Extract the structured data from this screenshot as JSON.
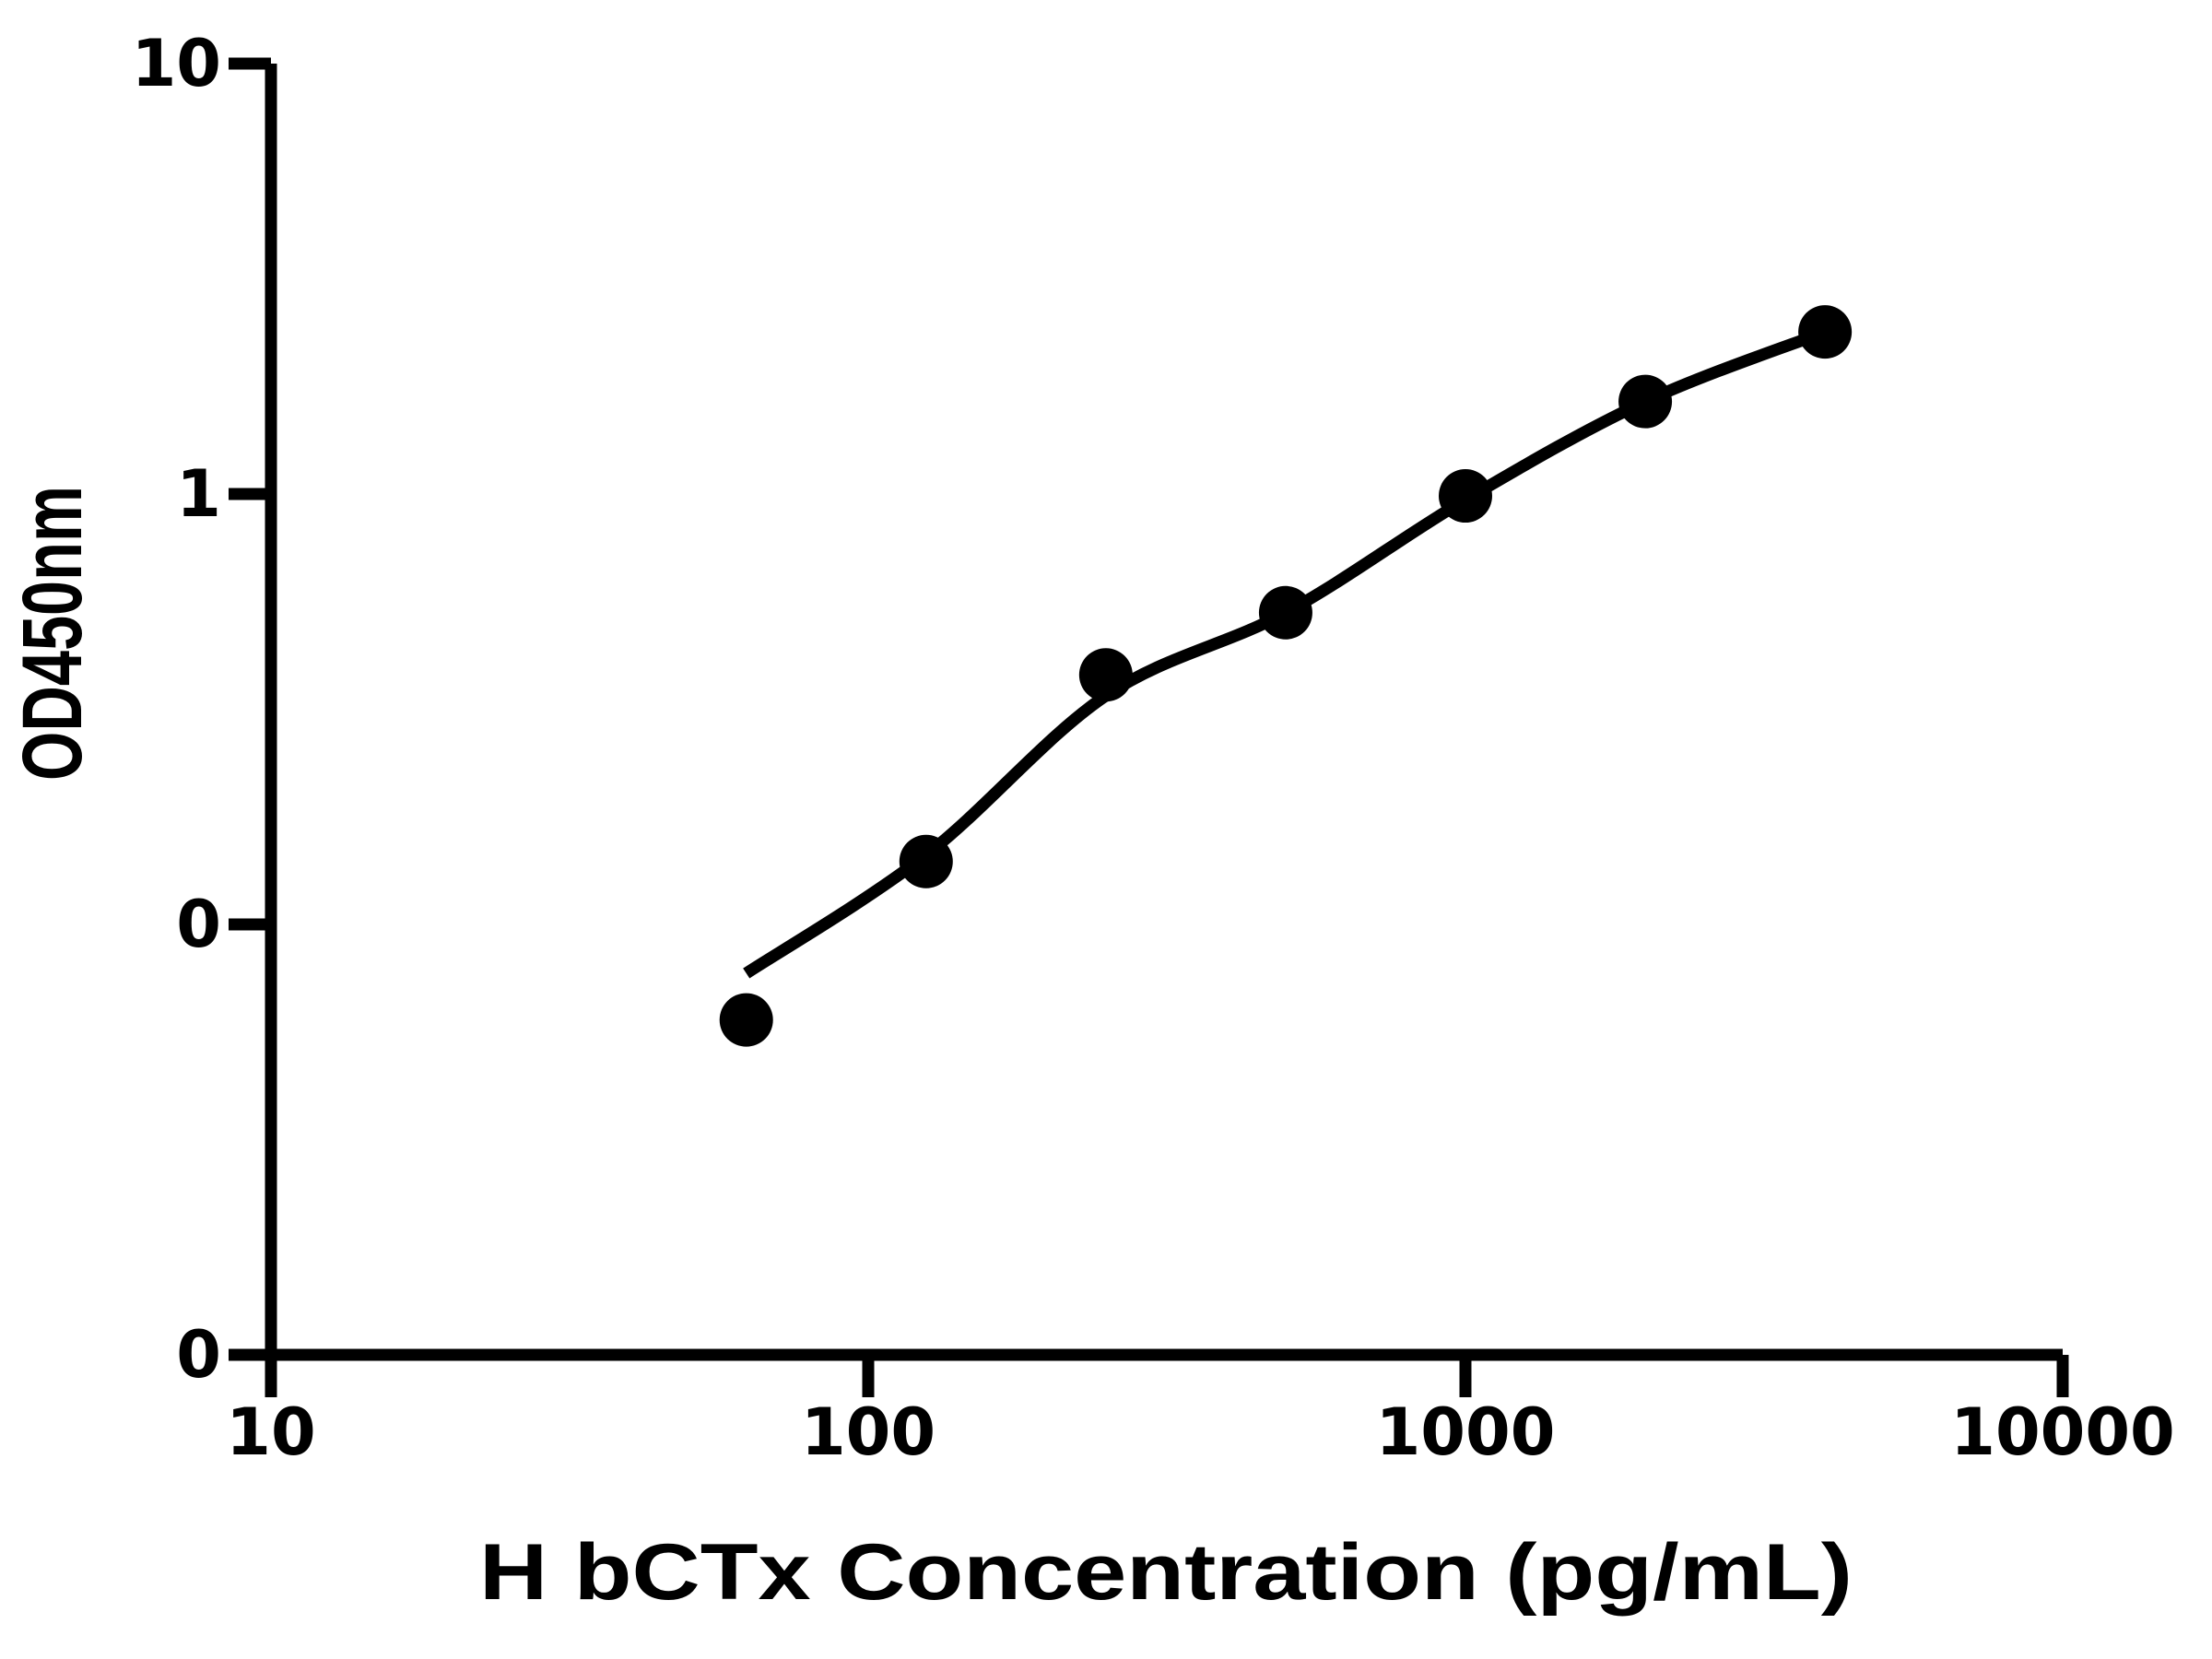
{
  "page": {
    "background_color": "#ffffff",
    "foreground_color": "#000000"
  },
  "chart_data": {
    "type": "scatter",
    "title": "",
    "xlabel": "H bCTx Concentration (pg/mL)",
    "ylabel": "OD450nm",
    "x_scale": "log",
    "y_scale": "log",
    "xlim": [
      10,
      10000
    ],
    "ylim": [
      0.01,
      10
    ],
    "grid": false,
    "legend": false,
    "x_ticks": [
      {
        "value": 10,
        "label": "10"
      },
      {
        "value": 100,
        "label": "100"
      },
      {
        "value": 1000,
        "label": "1000"
      },
      {
        "value": 10000,
        "label": "10000"
      }
    ],
    "y_ticks": [
      {
        "value": 10,
        "label": "10"
      },
      {
        "value": 1,
        "label": "1"
      },
      {
        "value": 0.1,
        "label": "0"
      },
      {
        "value": 0.01,
        "label": "0"
      }
    ],
    "series": [
      {
        "name": "standard-points",
        "kind": "scatter",
        "marker": "circle",
        "marker_color": "#000000",
        "points": [
          {
            "x": 62.5,
            "y": 0.06
          },
          {
            "x": 125,
            "y": 0.14
          },
          {
            "x": 250,
            "y": 0.38
          },
          {
            "x": 500,
            "y": 0.53
          },
          {
            "x": 1000,
            "y": 0.99
          },
          {
            "x": 2000,
            "y": 1.64
          },
          {
            "x": 4000,
            "y": 2.38
          }
        ]
      },
      {
        "name": "fit-curve",
        "kind": "line",
        "line_color": "#000000",
        "points": [
          {
            "x": 62.5,
            "y": 0.077
          },
          {
            "x": 125,
            "y": 0.145
          },
          {
            "x": 250,
            "y": 0.34
          },
          {
            "x": 500,
            "y": 0.53
          },
          {
            "x": 1000,
            "y": 0.97
          },
          {
            "x": 2000,
            "y": 1.64
          },
          {
            "x": 4000,
            "y": 2.38
          }
        ]
      }
    ]
  }
}
